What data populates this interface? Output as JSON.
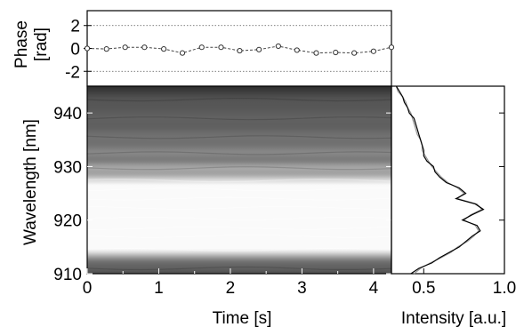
{
  "chart_data": [
    {
      "type": "line",
      "panel": "phase",
      "ylabel": "Phase [rad]",
      "ylabel_lines": [
        "Phase",
        "[rad]"
      ],
      "ylim": [
        -3.3,
        3.3
      ],
      "xlim": [
        0,
        4.25
      ],
      "yticks": [
        -2,
        0,
        2
      ],
      "ytick_labels": [
        "-2",
        "0",
        "2"
      ],
      "reference_lines": [
        -2,
        2
      ],
      "series": [
        {
          "x": [
            0.0,
            0.27,
            0.53,
            0.8,
            1.07,
            1.33,
            1.6,
            1.87,
            2.13,
            2.4,
            2.67,
            2.93,
            3.2,
            3.47,
            3.73,
            4.0,
            4.25
          ],
          "y": [
            0.0,
            -0.05,
            0.1,
            0.1,
            -0.05,
            -0.4,
            0.1,
            0.1,
            -0.2,
            -0.1,
            0.2,
            -0.15,
            -0.4,
            -0.35,
            -0.4,
            -0.25,
            0.1
          ]
        }
      ]
    },
    {
      "type": "heatmap",
      "panel": "spectrogram",
      "xlabel": "Time [s]",
      "ylabel": "Wavelength [nm]",
      "xlim": [
        0,
        4.25
      ],
      "ylim": [
        910,
        945
      ],
      "xticks": [
        0,
        1,
        2,
        3,
        4
      ],
      "xtick_labels": [
        "0",
        "1",
        "2",
        "3",
        "4"
      ],
      "yticks": [
        910,
        920,
        930,
        940
      ],
      "ytick_labels": [
        "910",
        "920",
        "930",
        "940"
      ],
      "colormap": "grayscale",
      "bands": [
        {
          "center": 911.0,
          "width": 1.0,
          "intensity": 0.15
        },
        {
          "center": 914.5,
          "width": 1.4,
          "intensity": 0.72
        },
        {
          "center": 917.0,
          "width": 1.3,
          "intensity": 0.78
        },
        {
          "center": 918.5,
          "width": 0.9,
          "intensity": 0.95
        },
        {
          "center": 920.3,
          "width": 1.0,
          "intensity": 0.75
        },
        {
          "center": 922.3,
          "width": 0.9,
          "intensity": 1.0
        },
        {
          "center": 924.0,
          "width": 0.9,
          "intensity": 0.7
        },
        {
          "center": 925.7,
          "width": 0.8,
          "intensity": 0.85
        },
        {
          "center": 927.4,
          "width": 0.9,
          "intensity": 0.65
        },
        {
          "center": 929.7,
          "width": 1.0,
          "intensity": 0.5
        },
        {
          "center": 932.5,
          "width": 1.2,
          "intensity": 0.38
        },
        {
          "center": 935.5,
          "width": 1.4,
          "intensity": 0.3
        },
        {
          "center": 939.0,
          "width": 1.6,
          "intensity": 0.25
        },
        {
          "center": 942.5,
          "width": 1.6,
          "intensity": 0.2
        }
      ]
    },
    {
      "type": "line",
      "panel": "spectrum",
      "xlabel": "Intensity [a.u.]",
      "xlim": [
        0.3,
        1.0
      ],
      "ylim": [
        910,
        945
      ],
      "xticks": [
        0.5,
        1.0
      ],
      "xtick_labels": [
        "0.5",
        "1.0"
      ],
      "series": [
        {
          "color": "#000000",
          "wavelength": [
            910,
            911,
            912,
            913,
            914,
            915,
            916,
            917,
            918,
            919,
            920,
            921,
            922,
            923,
            924,
            925,
            926,
            927,
            928,
            929,
            930,
            931,
            932,
            933,
            934,
            935,
            936,
            937,
            938,
            939,
            940,
            941,
            942,
            943,
            944,
            945
          ],
          "intensity": [
            0.42,
            0.47,
            0.55,
            0.6,
            0.66,
            0.72,
            0.76,
            0.8,
            0.85,
            0.83,
            0.74,
            0.8,
            0.87,
            0.82,
            0.7,
            0.76,
            0.72,
            0.64,
            0.6,
            0.57,
            0.56,
            0.52,
            0.5,
            0.5,
            0.49,
            0.48,
            0.47,
            0.46,
            0.45,
            0.44,
            0.41,
            0.4,
            0.38,
            0.37,
            0.35,
            0.33
          ]
        },
        {
          "color": "#999999",
          "wavelength": [
            910,
            911,
            912,
            913,
            914,
            915,
            916,
            917,
            918,
            919,
            920,
            921,
            922,
            923,
            924,
            925,
            926,
            927,
            928,
            929,
            930,
            931,
            932,
            933,
            934,
            935,
            936,
            937,
            938,
            939,
            940,
            941,
            942,
            943,
            944,
            945
          ],
          "intensity": [
            0.44,
            0.48,
            0.54,
            0.61,
            0.67,
            0.71,
            0.77,
            0.81,
            0.84,
            0.82,
            0.75,
            0.79,
            0.86,
            0.83,
            0.71,
            0.75,
            0.71,
            0.65,
            0.61,
            0.58,
            0.55,
            0.53,
            0.51,
            0.49,
            0.49,
            0.48,
            0.46,
            0.45,
            0.44,
            0.43,
            0.42,
            0.4,
            0.39,
            0.37,
            0.34,
            0.33
          ]
        }
      ]
    }
  ]
}
